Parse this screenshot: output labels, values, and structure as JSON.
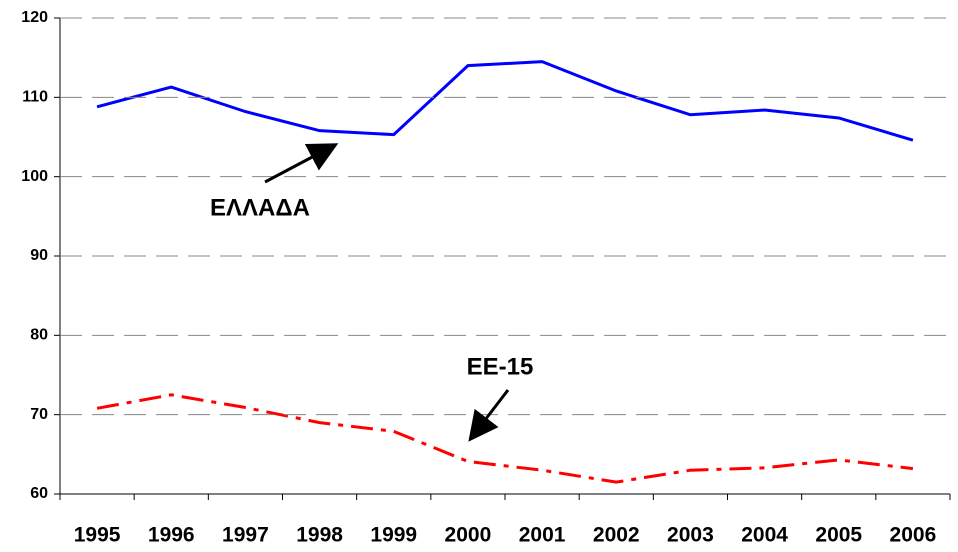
{
  "chart_data": {
    "type": "line",
    "categories": [
      "1995",
      "1996",
      "1997",
      "1998",
      "1999",
      "2000",
      "2001",
      "2002",
      "2003",
      "2004",
      "2005",
      "2006"
    ],
    "series": [
      {
        "name": "ΕΛΛΑΔΑ",
        "color": "#0000ff",
        "dash": "solid",
        "values": [
          108.8,
          111.3,
          108.2,
          105.8,
          105.3,
          114.0,
          114.5,
          110.8,
          107.8,
          108.4,
          107.4,
          104.6
        ]
      },
      {
        "name": "ΕΕ-15",
        "color": "#ff0000",
        "dash": "dashdot",
        "values": [
          70.8,
          72.5,
          70.9,
          69.0,
          67.9,
          64.1,
          63.0,
          61.5,
          63.0,
          63.3,
          64.3,
          63.2
        ]
      }
    ],
    "annotations": [
      "ΕΛΛΑΔΑ",
      "ΕΕ-15"
    ],
    "ylim": [
      60,
      120
    ],
    "yticks": [
      60,
      70,
      80,
      90,
      100,
      110,
      120
    ],
    "grid": true
  }
}
